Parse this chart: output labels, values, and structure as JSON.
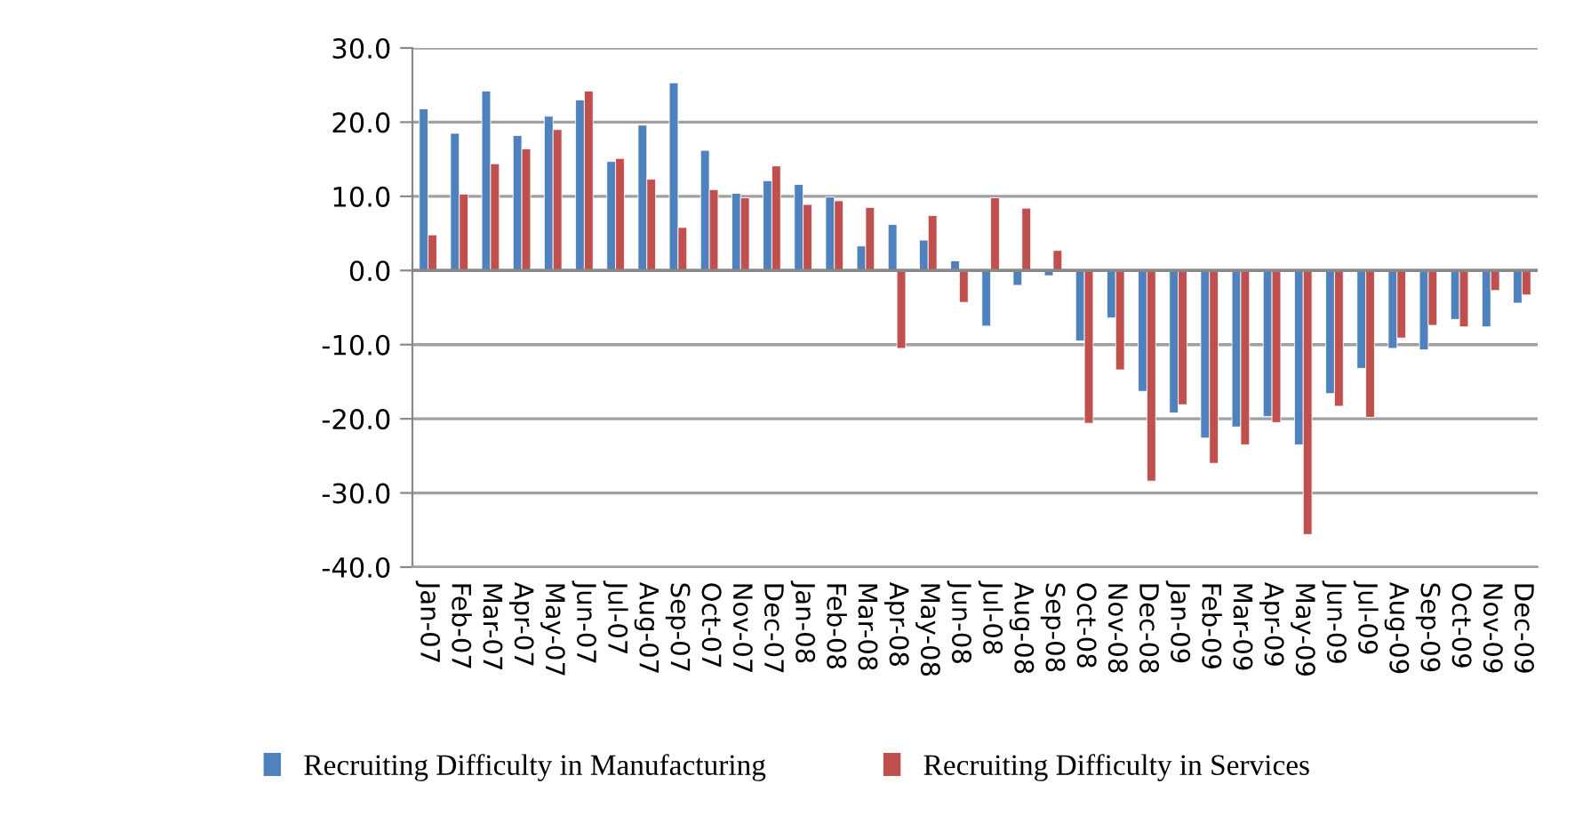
{
  "chart_data": {
    "type": "bar",
    "categories": [
      "Jan-07",
      "Feb-07",
      "Mar-07",
      "Apr-07",
      "May-07",
      "Jun-07",
      "Jul-07",
      "Aug-07",
      "Sep-07",
      "Oct-07",
      "Nov-07",
      "Dec-07",
      "Jan-08",
      "Feb-08",
      "Mar-08",
      "Apr-08",
      "May-08",
      "Jun-08",
      "Jul-08",
      "Aug-08",
      "Sep-08",
      "Oct-08",
      "Nov-08",
      "Dec-08",
      "Jan-09",
      "Feb-09",
      "Mar-09",
      "Apr-09",
      "May-09",
      "Jun-09",
      "Jul-09",
      "Aug-09",
      "Sep-09",
      "Oct-09",
      "Nov-09",
      "Dec-09"
    ],
    "series": [
      {
        "name": "Recruiting Difficulty in Manufacturing",
        "color": "#4f81bd",
        "values": [
          21.8,
          18.5,
          24.2,
          18.2,
          20.8,
          23.0,
          14.7,
          19.6,
          25.3,
          16.2,
          10.4,
          12.1,
          11.6,
          9.9,
          3.3,
          6.2,
          4.1,
          1.3,
          -7.5,
          -2.0,
          -0.7,
          -9.5,
          -6.4,
          -16.3,
          -19.2,
          -22.6,
          -21.1,
          -19.7,
          -23.5,
          -16.6,
          -13.2,
          -10.5,
          -10.7,
          -6.6,
          -7.6,
          -4.4
        ]
      },
      {
        "name": "Recruiting Difficulty in Services",
        "color": "#c0504d",
        "values": [
          4.8,
          10.3,
          14.4,
          16.4,
          19.0,
          24.2,
          15.1,
          12.3,
          5.8,
          10.9,
          9.8,
          14.1,
          8.9,
          9.4,
          8.5,
          -10.5,
          7.4,
          -4.3,
          9.8,
          8.4,
          2.7,
          -20.6,
          -13.4,
          -28.4,
          -18.1,
          -26.0,
          -23.5,
          -20.5,
          -35.6,
          -18.3,
          -19.8,
          -9.1,
          -7.4,
          -7.6,
          -2.7,
          -3.3
        ]
      }
    ],
    "ylim": [
      -40,
      30
    ],
    "yticks": [
      {
        "value": -40,
        "label": "-40.0"
      },
      {
        "value": -30,
        "label": "-30.0"
      },
      {
        "value": -20,
        "label": "-20.0"
      },
      {
        "value": -10,
        "label": "-10.0"
      },
      {
        "value": 0,
        "label": "0.0"
      },
      {
        "value": 10,
        "label": "10.0"
      },
      {
        "value": 20,
        "label": "20.0"
      },
      {
        "value": 30,
        "label": "30.0"
      }
    ],
    "grid": "y",
    "legend": "bottom"
  }
}
